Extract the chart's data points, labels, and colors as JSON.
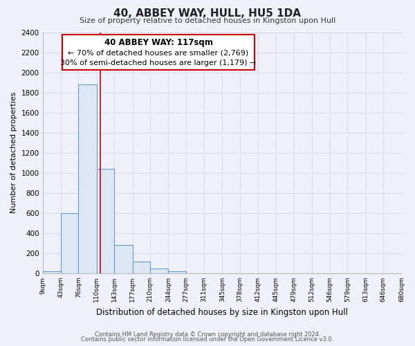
{
  "title": "40, ABBEY WAY, HULL, HU5 1DA",
  "subtitle": "Size of property relative to detached houses in Kingston upon Hull",
  "xlabel": "Distribution of detached houses by size in Kingston upon Hull",
  "ylabel": "Number of detached properties",
  "bar_edges": [
    9,
    43,
    76,
    110,
    143,
    177,
    210,
    244,
    277,
    311,
    345,
    378,
    412,
    445,
    479,
    512,
    546,
    579,
    613,
    646,
    680
  ],
  "bar_heights": [
    20,
    600,
    1880,
    1040,
    280,
    115,
    45,
    20,
    0,
    0,
    0,
    0,
    0,
    0,
    0,
    0,
    0,
    0,
    0,
    0
  ],
  "bar_color": "#dde8f4",
  "bar_edge_color": "#6699cc",
  "bar_linewidth": 0.8,
  "vline_x": 117,
  "vline_color": "#cc0000",
  "vline_linewidth": 1.2,
  "ylim": [
    0,
    2400
  ],
  "yticks": [
    0,
    200,
    400,
    600,
    800,
    1000,
    1200,
    1400,
    1600,
    1800,
    2000,
    2200,
    2400
  ],
  "xtick_labels": [
    "9sqm",
    "43sqm",
    "76sqm",
    "110sqm",
    "143sqm",
    "177sqm",
    "210sqm",
    "244sqm",
    "277sqm",
    "311sqm",
    "345sqm",
    "378sqm",
    "412sqm",
    "445sqm",
    "479sqm",
    "512sqm",
    "546sqm",
    "579sqm",
    "613sqm",
    "646sqm",
    "680sqm"
  ],
  "annotation_title": "40 ABBEY WAY: 117sqm",
  "annotation_line1": "← 70% of detached houses are smaller (2,769)",
  "annotation_line2": "30% of semi-detached houses are larger (1,179) →",
  "annotation_box_color": "#ffffff",
  "annotation_box_edge": "#cc0000",
  "grid_color": "#d4dce8",
  "background_color": "#eef2f8",
  "plot_bg_color": "#eef2f8",
  "footer_line1": "Contains HM Land Registry data © Crown copyright and database right 2024.",
  "footer_line2": "Contains public sector information licensed under the Open Government Licence v3.0."
}
